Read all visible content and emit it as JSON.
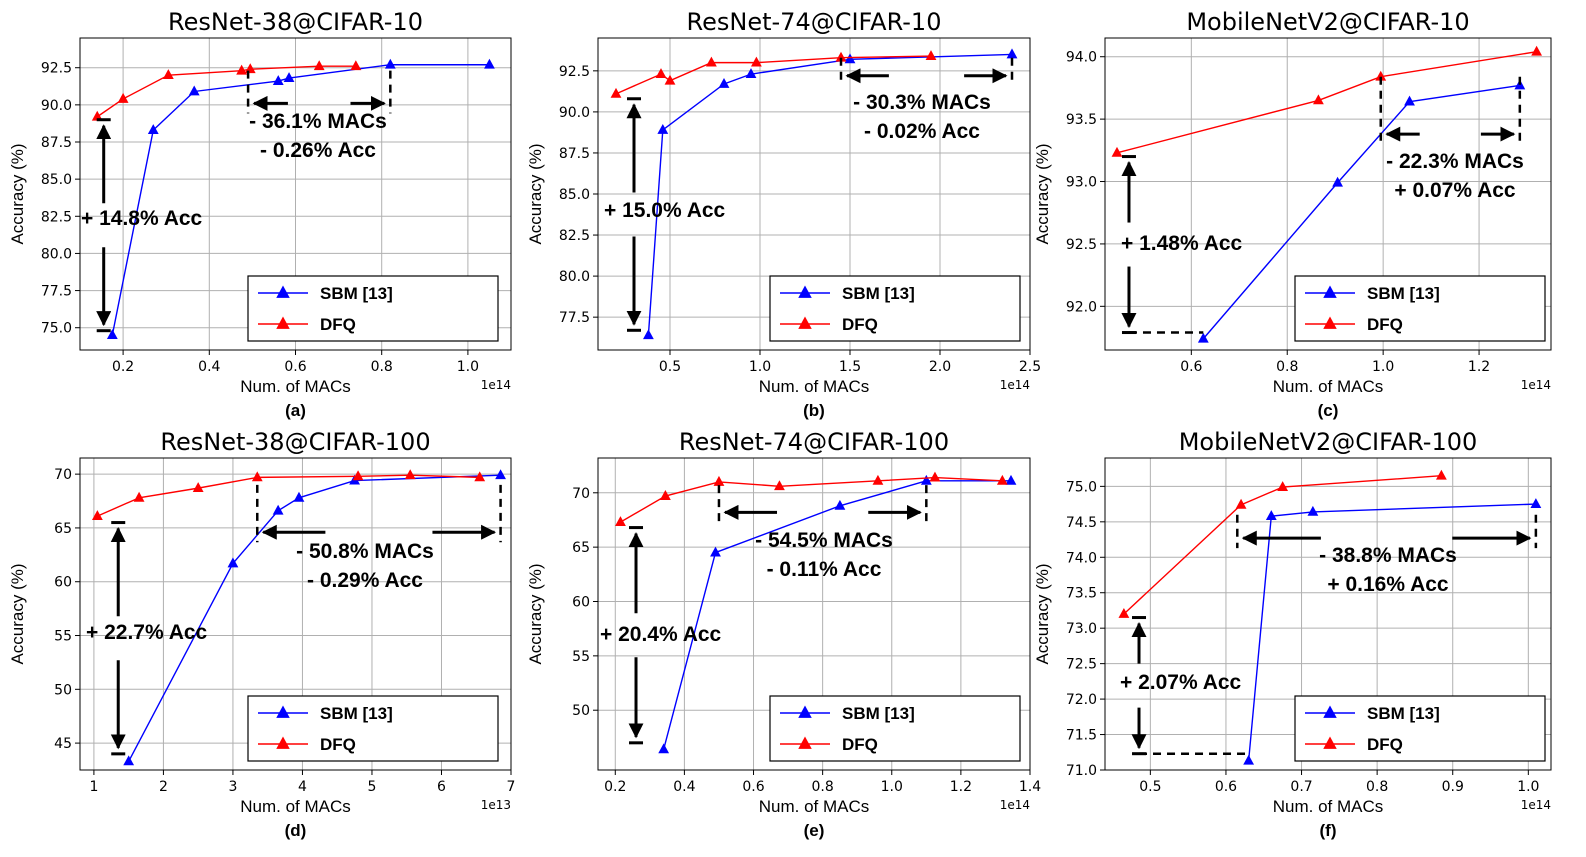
{
  "figure": {
    "legend": [
      "SBM [13]",
      "DFQ"
    ],
    "colors": {
      "sbm": "#0000ff",
      "dfq": "#ff0000",
      "annotation": "#000000"
    }
  },
  "chart_data": [
    {
      "type": "line",
      "title": "ResNet-38@CIFAR-10",
      "sub_label": "(a)",
      "xlabel": "Num. of MACs",
      "ylabel": "Accuracy (%)",
      "x_exponent": "1e14",
      "xlim": [
        0.1,
        1.1
      ],
      "ylim": [
        73.5,
        94.5
      ],
      "xticks": [
        0.2,
        0.4,
        0.6,
        0.8,
        1.0
      ],
      "xtick_labels": [
        "0.2",
        "0.4",
        "0.6",
        "0.8",
        "1.0"
      ],
      "yticks": [
        75,
        77.5,
        80,
        82.5,
        85,
        87.5,
        90,
        92.5
      ],
      "ytick_labels": [
        "75.0",
        "77.5",
        "80.0",
        "82.5",
        "85.0",
        "87.5",
        "90.0",
        "92.5"
      ],
      "series": [
        {
          "name": "SBM [13]",
          "color": "#0000ff",
          "x": [
            0.175,
            0.27,
            0.365,
            0.56,
            0.585,
            0.82,
            1.05
          ],
          "y": [
            74.5,
            88.3,
            90.9,
            91.6,
            91.8,
            92.7,
            92.7
          ]
        },
        {
          "name": "DFQ",
          "color": "#ff0000",
          "x": [
            0.14,
            0.2,
            0.305,
            0.475,
            0.495,
            0.655,
            0.74
          ],
          "y": [
            89.2,
            90.4,
            92.0,
            92.3,
            92.4,
            92.6,
            92.6
          ]
        }
      ],
      "annotations": [
        {
          "text": "+ 14.8% Acc",
          "kind": "vertical",
          "x": 0.155,
          "y1": 89.0,
          "y2": 74.8,
          "ext": 0.2
        },
        {
          "text": "- 36.1% MACs",
          "kind": "horizontal",
          "x1": 0.49,
          "x2": 0.82,
          "y": 90.1,
          "drop_from": 92.3
        },
        {
          "text": "- 0.26% Acc"
        }
      ]
    },
    {
      "type": "line",
      "title": "ResNet-74@CIFAR-10",
      "sub_label": "(b)",
      "xlabel": "Num. of MACs",
      "ylabel": "Accuracy (%)",
      "x_exponent": "1e14",
      "xlim": [
        0.1,
        2.5
      ],
      "ylim": [
        75.5,
        94.5
      ],
      "xticks": [
        0.5,
        1.0,
        1.5,
        2.0,
        2.5
      ],
      "xtick_labels": [
        "0.5",
        "1.0",
        "1.5",
        "2.0",
        "2.5"
      ],
      "yticks": [
        77.5,
        80,
        82.5,
        85,
        87.5,
        90,
        92.5
      ],
      "ytick_labels": [
        "77.5",
        "80.0",
        "82.5",
        "85.0",
        "87.5",
        "90.0",
        "92.5"
      ],
      "series": [
        {
          "name": "SBM [13]",
          "color": "#0000ff",
          "x": [
            0.38,
            0.46,
            0.8,
            0.95,
            1.5,
            2.4
          ],
          "y": [
            76.4,
            88.9,
            91.7,
            92.3,
            93.2,
            93.5
          ]
        },
        {
          "name": "DFQ",
          "color": "#ff0000",
          "x": [
            0.2,
            0.45,
            0.5,
            0.73,
            0.98,
            1.45,
            1.95
          ],
          "y": [
            91.1,
            92.3,
            91.9,
            93.0,
            93.0,
            93.3,
            93.4
          ]
        }
      ],
      "annotations": [
        {
          "text": "+ 15.0% Acc",
          "kind": "vertical",
          "x": 0.3,
          "y1": 90.8,
          "y2": 76.7,
          "ext": 0.2
        },
        {
          "text": "- 30.3% MACs",
          "kind": "horizontal",
          "x1": 1.45,
          "x2": 2.4,
          "y": 92.2,
          "drop_from": 93.3
        },
        {
          "text": "- 0.02% Acc"
        }
      ]
    },
    {
      "type": "line",
      "title": "MobileNetV2@CIFAR-10",
      "sub_label": "(c)",
      "xlabel": "Num. of MACs",
      "ylabel": "Accuracy (%)",
      "x_exponent": "1e14",
      "xlim": [
        0.42,
        1.35
      ],
      "ylim": [
        91.65,
        94.15
      ],
      "xticks": [
        0.6,
        0.8,
        1.0,
        1.2
      ],
      "xtick_labels": [
        "0.6",
        "0.8",
        "1.0",
        "1.2"
      ],
      "yticks": [
        92.0,
        92.5,
        93.0,
        93.5,
        94.0
      ],
      "ytick_labels": [
        "92.0",
        "92.5",
        "93.0",
        "93.5",
        "94.0"
      ],
      "series": [
        {
          "name": "SBM [13]",
          "color": "#0000ff",
          "x": [
            0.625,
            0.905,
            1.055,
            1.285
          ],
          "y": [
            91.74,
            92.99,
            93.64,
            93.77
          ]
        },
        {
          "name": "DFQ",
          "color": "#ff0000",
          "x": [
            0.445,
            0.865,
            0.995,
            1.32
          ],
          "y": [
            93.23,
            93.65,
            93.84,
            94.04
          ]
        }
      ],
      "annotations": [
        {
          "text": "+ 1.48% Acc",
          "kind": "vertical",
          "x": 0.47,
          "y1": 93.2,
          "y2": 91.79,
          "ext": 0.2
        },
        {
          "text": "- 22.3% MACs",
          "kind": "horizontal",
          "x1": 0.995,
          "x2": 1.285,
          "y": 93.38,
          "drop_from": 93.84
        },
        {
          "text": "+ 0.07% Acc"
        }
      ]
    },
    {
      "type": "line",
      "title": "ResNet-38@CIFAR-100",
      "sub_label": "(d)",
      "xlabel": "Num. of MACs",
      "ylabel": "Accuracy (%)",
      "x_exponent": "1e13",
      "xlim": [
        0.8,
        7.0
      ],
      "ylim": [
        42.5,
        71.5
      ],
      "xticks": [
        1,
        2,
        3,
        4,
        5,
        6,
        7
      ],
      "xtick_labels": [
        "1",
        "2",
        "3",
        "4",
        "5",
        "6",
        "7"
      ],
      "yticks": [
        45,
        50,
        55,
        60,
        65,
        70
      ],
      "ytick_labels": [
        "45",
        "50",
        "55",
        "60",
        "65",
        "70"
      ],
      "series": [
        {
          "name": "SBM [13]",
          "color": "#0000ff",
          "x": [
            1.5,
            3.0,
            3.65,
            3.95,
            4.75,
            6.85
          ],
          "y": [
            43.3,
            61.7,
            66.6,
            67.8,
            69.4,
            69.9
          ]
        },
        {
          "name": "DFQ",
          "color": "#ff0000",
          "x": [
            1.05,
            1.65,
            2.5,
            3.35,
            4.8,
            5.55,
            6.55
          ],
          "y": [
            66.1,
            67.8,
            68.7,
            69.7,
            69.8,
            69.9,
            69.7
          ]
        }
      ],
      "annotations": [
        {
          "text": "+ 22.7% Acc",
          "kind": "vertical",
          "x": 1.35,
          "y1": 65.5,
          "y2": 44.0,
          "ext": 0.2
        },
        {
          "text": "- 50.8% MACs",
          "kind": "horizontal",
          "x1": 3.35,
          "x2": 6.85,
          "y": 64.6,
          "drop_from": 69.0
        },
        {
          "text": "- 0.29% Acc"
        }
      ]
    },
    {
      "type": "line",
      "title": "ResNet-74@CIFAR-100",
      "sub_label": "(e)",
      "xlabel": "Num. of MACs",
      "ylabel": "Accuracy (%)",
      "x_exponent": "1e14",
      "xlim": [
        0.15,
        1.4
      ],
      "ylim": [
        44.5,
        73.2
      ],
      "xticks": [
        0.2,
        0.4,
        0.6,
        0.8,
        1.0,
        1.2,
        1.4
      ],
      "xtick_labels": [
        "0.2",
        "0.4",
        "0.6",
        "0.8",
        "1.0",
        "1.2",
        "1.4"
      ],
      "yticks": [
        50,
        55,
        60,
        65,
        70
      ],
      "ytick_labels": [
        "50",
        "55",
        "60",
        "65",
        "70"
      ],
      "series": [
        {
          "name": "SBM [13]",
          "color": "#0000ff",
          "x": [
            0.34,
            0.49,
            0.85,
            1.1,
            1.345
          ],
          "y": [
            46.4,
            64.5,
            68.8,
            71.1,
            71.1
          ]
        },
        {
          "name": "DFQ",
          "color": "#ff0000",
          "x": [
            0.215,
            0.345,
            0.5,
            0.675,
            0.96,
            1.125,
            1.32
          ],
          "y": [
            67.3,
            69.7,
            71.0,
            70.6,
            71.1,
            71.4,
            71.1
          ]
        }
      ],
      "annotations": [
        {
          "text": "+ 20.4% Acc",
          "kind": "vertical",
          "x": 0.26,
          "y1": 66.8,
          "y2": 47.0,
          "ext": 0.2
        },
        {
          "text": "- 54.5% MACs",
          "kind": "horizontal",
          "x1": 0.5,
          "x2": 1.1,
          "y": 68.2,
          "drop_from": 70.7
        },
        {
          "text": "- 0.11% Acc"
        }
      ]
    },
    {
      "type": "line",
      "title": "MobileNetV2@CIFAR-100",
      "sub_label": "(f)",
      "xlabel": "Num. of MACs",
      "ylabel": "Accuracy (%)",
      "x_exponent": "1e14",
      "xlim": [
        0.44,
        1.03
      ],
      "ylim": [
        71.0,
        75.4
      ],
      "xticks": [
        0.5,
        0.6,
        0.7,
        0.8,
        0.9,
        1.0
      ],
      "xtick_labels": [
        "0.5",
        "0.6",
        "0.7",
        "0.8",
        "0.9",
        "1.0"
      ],
      "yticks": [
        71.0,
        71.5,
        72.0,
        72.5,
        73.0,
        73.5,
        74.0,
        74.5,
        75.0
      ],
      "ytick_labels": [
        "71.0",
        "71.5",
        "72.0",
        "72.5",
        "73.0",
        "73.5",
        "74.0",
        "74.5",
        "75.0"
      ],
      "series": [
        {
          "name": "SBM [13]",
          "color": "#0000ff",
          "x": [
            0.63,
            0.66,
            0.715,
            1.01
          ],
          "y": [
            71.13,
            74.58,
            74.64,
            74.75
          ]
        },
        {
          "name": "DFQ",
          "color": "#ff0000",
          "x": [
            0.465,
            0.62,
            0.675,
            0.885
          ],
          "y": [
            73.2,
            74.74,
            74.99,
            75.15
          ]
        }
      ],
      "annotations": [
        {
          "text": "+ 2.07% Acc",
          "kind": "vertical",
          "x": 0.485,
          "y1": 73.15,
          "y2": 71.23,
          "ext": 0.2
        },
        {
          "text": "- 38.8% MACs",
          "kind": "horizontal",
          "x1": 0.615,
          "x2": 1.01,
          "y": 74.27,
          "drop_from": 74.6
        },
        {
          "text": "+ 0.16% Acc"
        }
      ]
    }
  ]
}
